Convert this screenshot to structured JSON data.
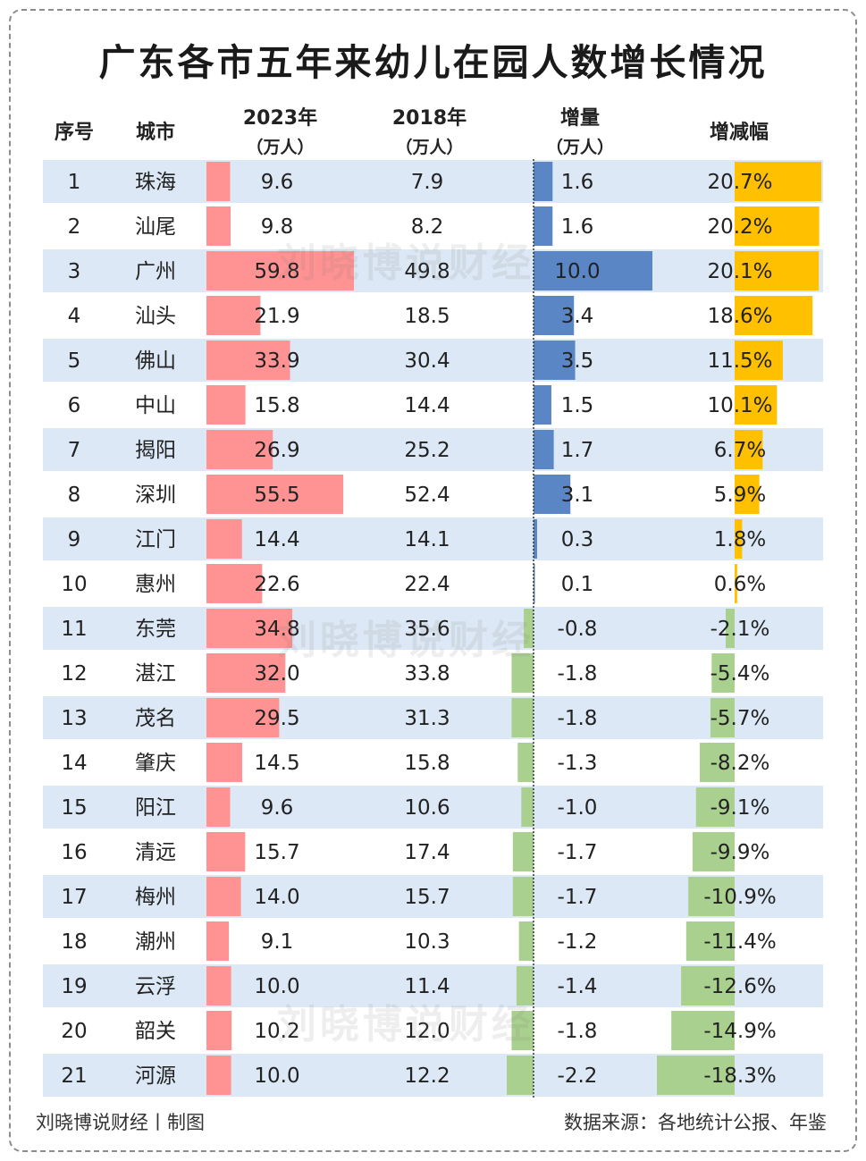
{
  "title": "广东各市五年来幼儿在园人数增长情况",
  "watermark": "刘晓博说财经",
  "headers": {
    "idx": "序号",
    "city": "城市",
    "y2023": "2023年",
    "y2023_unit": "（万人）",
    "y2018": "2018年",
    "y2018_unit": "（万人）",
    "delta": "增量",
    "delta_unit": "（万人）",
    "pct": "增减幅"
  },
  "footer": {
    "left": "刘晓博说财经丨制图",
    "right": "数据来源：各地统计公报、年鉴"
  },
  "colors": {
    "row_stripe": "#dce8f5",
    "bar_2023": "#ff9292",
    "delta_positive": "#5b86c6",
    "delta_negative": "#a9d08e",
    "pct_positive": "#ffc000",
    "pct_negative": "#a9d08e"
  },
  "chart_data": {
    "type": "table",
    "title": "广东各市五年来幼儿在园人数增长情况",
    "columns": [
      "序号",
      "城市",
      "2023年（万人）",
      "2018年（万人）",
      "增量（万人）",
      "增减幅"
    ],
    "rows": [
      {
        "idx": "1",
        "city": "珠海",
        "v2023": 9.6,
        "v2018": 7.9,
        "delta": 1.6,
        "pct": 20.7,
        "v2023_label": "9.6",
        "v2018_label": "7.9",
        "delta_label": "1.6",
        "pct_label": "20.7%"
      },
      {
        "idx": "2",
        "city": "汕尾",
        "v2023": 9.8,
        "v2018": 8.2,
        "delta": 1.6,
        "pct": 20.2,
        "v2023_label": "9.8",
        "v2018_label": "8.2",
        "delta_label": "1.6",
        "pct_label": "20.2%"
      },
      {
        "idx": "3",
        "city": "广州",
        "v2023": 59.8,
        "v2018": 49.8,
        "delta": 10.0,
        "pct": 20.1,
        "v2023_label": "59.8",
        "v2018_label": "49.8",
        "delta_label": "10.0",
        "pct_label": "20.1%"
      },
      {
        "idx": "4",
        "city": "汕头",
        "v2023": 21.9,
        "v2018": 18.5,
        "delta": 3.4,
        "pct": 18.6,
        "v2023_label": "21.9",
        "v2018_label": "18.5",
        "delta_label": "3.4",
        "pct_label": "18.6%"
      },
      {
        "idx": "5",
        "city": "佛山",
        "v2023": 33.9,
        "v2018": 30.4,
        "delta": 3.5,
        "pct": 11.5,
        "v2023_label": "33.9",
        "v2018_label": "30.4",
        "delta_label": "3.5",
        "pct_label": "11.5%"
      },
      {
        "idx": "6",
        "city": "中山",
        "v2023": 15.8,
        "v2018": 14.4,
        "delta": 1.5,
        "pct": 10.1,
        "v2023_label": "15.8",
        "v2018_label": "14.4",
        "delta_label": "1.5",
        "pct_label": "10.1%"
      },
      {
        "idx": "7",
        "city": "揭阳",
        "v2023": 26.9,
        "v2018": 25.2,
        "delta": 1.7,
        "pct": 6.7,
        "v2023_label": "26.9",
        "v2018_label": "25.2",
        "delta_label": "1.7",
        "pct_label": "6.7%"
      },
      {
        "idx": "8",
        "city": "深圳",
        "v2023": 55.5,
        "v2018": 52.4,
        "delta": 3.1,
        "pct": 5.9,
        "v2023_label": "55.5",
        "v2018_label": "52.4",
        "delta_label": "3.1",
        "pct_label": "5.9%"
      },
      {
        "idx": "9",
        "city": "江门",
        "v2023": 14.4,
        "v2018": 14.1,
        "delta": 0.3,
        "pct": 1.8,
        "v2023_label": "14.4",
        "v2018_label": "14.1",
        "delta_label": "0.3",
        "pct_label": "1.8%"
      },
      {
        "idx": "10",
        "city": "惠州",
        "v2023": 22.6,
        "v2018": 22.4,
        "delta": 0.1,
        "pct": 0.6,
        "v2023_label": "22.6",
        "v2018_label": "22.4",
        "delta_label": "0.1",
        "pct_label": "0.6%"
      },
      {
        "idx": "11",
        "city": "东莞",
        "v2023": 34.8,
        "v2018": 35.6,
        "delta": -0.8,
        "pct": -2.1,
        "v2023_label": "34.8",
        "v2018_label": "35.6",
        "delta_label": "-0.8",
        "pct_label": "-2.1%"
      },
      {
        "idx": "12",
        "city": "湛江",
        "v2023": 32.0,
        "v2018": 33.8,
        "delta": -1.8,
        "pct": -5.4,
        "v2023_label": "32.0",
        "v2018_label": "33.8",
        "delta_label": "-1.8",
        "pct_label": "-5.4%"
      },
      {
        "idx": "13",
        "city": "茂名",
        "v2023": 29.5,
        "v2018": 31.3,
        "delta": -1.8,
        "pct": -5.7,
        "v2023_label": "29.5",
        "v2018_label": "31.3",
        "delta_label": "-1.8",
        "pct_label": "-5.7%"
      },
      {
        "idx": "14",
        "city": "肇庆",
        "v2023": 14.5,
        "v2018": 15.8,
        "delta": -1.3,
        "pct": -8.2,
        "v2023_label": "14.5",
        "v2018_label": "15.8",
        "delta_label": "-1.3",
        "pct_label": "-8.2%"
      },
      {
        "idx": "15",
        "city": "阳江",
        "v2023": 9.6,
        "v2018": 10.6,
        "delta": -1.0,
        "pct": -9.1,
        "v2023_label": "9.6",
        "v2018_label": "10.6",
        "delta_label": "-1.0",
        "pct_label": "-9.1%"
      },
      {
        "idx": "16",
        "city": "清远",
        "v2023": 15.7,
        "v2018": 17.4,
        "delta": -1.7,
        "pct": -9.9,
        "v2023_label": "15.7",
        "v2018_label": "17.4",
        "delta_label": "-1.7",
        "pct_label": "-9.9%"
      },
      {
        "idx": "17",
        "city": "梅州",
        "v2023": 14.0,
        "v2018": 15.7,
        "delta": -1.7,
        "pct": -10.9,
        "v2023_label": "14.0",
        "v2018_label": "15.7",
        "delta_label": "-1.7",
        "pct_label": "-10.9%"
      },
      {
        "idx": "18",
        "city": "潮州",
        "v2023": 9.1,
        "v2018": 10.3,
        "delta": -1.2,
        "pct": -11.4,
        "v2023_label": "9.1",
        "v2018_label": "10.3",
        "delta_label": "-1.2",
        "pct_label": "-11.4%"
      },
      {
        "idx": "19",
        "city": "云浮",
        "v2023": 10.0,
        "v2018": 11.4,
        "delta": -1.4,
        "pct": -12.6,
        "v2023_label": "10.0",
        "v2018_label": "11.4",
        "delta_label": "-1.4",
        "pct_label": "-12.6%"
      },
      {
        "idx": "20",
        "city": "韶关",
        "v2023": 10.2,
        "v2018": 12.0,
        "delta": -1.8,
        "pct": -14.9,
        "v2023_label": "10.2",
        "v2018_label": "12.0",
        "delta_label": "-1.8",
        "pct_label": "-14.9%"
      },
      {
        "idx": "21",
        "city": "河源",
        "v2023": 10.0,
        "v2018": 12.2,
        "delta": -2.2,
        "pct": -18.3,
        "v2023_label": "10.0",
        "v2018_label": "12.2",
        "delta_label": "-2.2",
        "pct_label": "-18.3%"
      }
    ]
  }
}
